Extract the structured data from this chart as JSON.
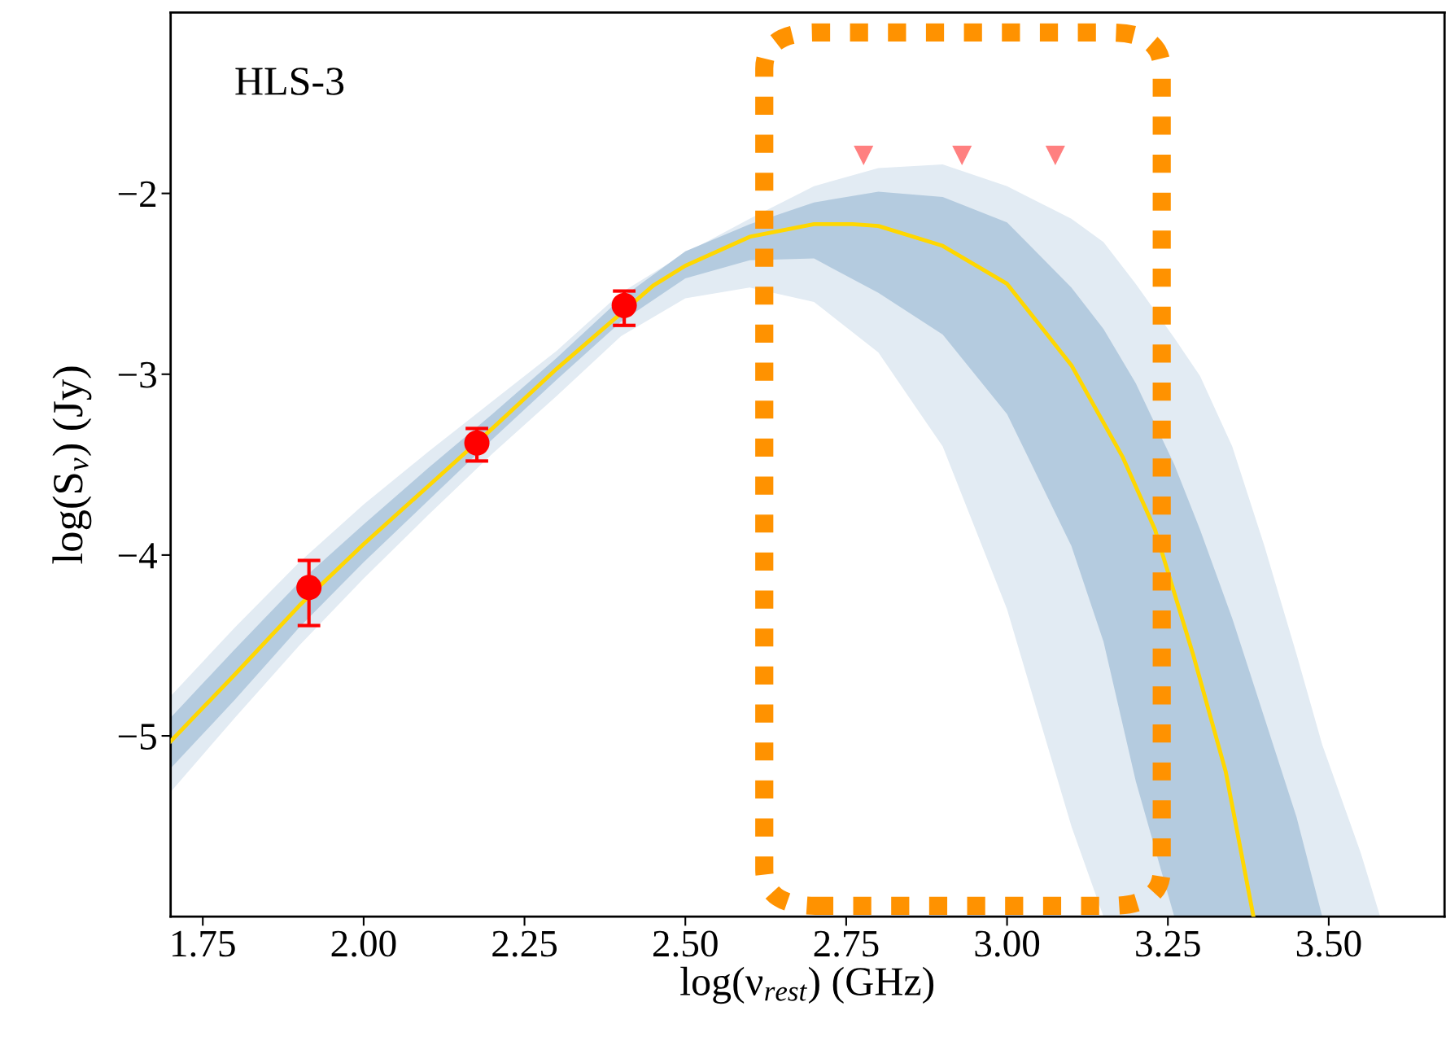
{
  "chart_data": {
    "type": "line",
    "xlabel": "log(ν$_{rest}$) (GHz)",
    "ylabel": "log(S$_{ν}$) (Jy)",
    "annotations": [
      "HLS-3"
    ],
    "xlim": [
      1.7,
      3.68
    ],
    "ylim": [
      -6.0,
      -1.0
    ],
    "xticks": [
      1.75,
      {
        "value": 2.0,
        "label": "2.00"
      },
      2.25,
      {
        "value": 2.5,
        "label": "2.50"
      },
      2.75,
      {
        "value": 3.0,
        "label": "3.00"
      },
      3.25,
      {
        "value": 3.5,
        "label": "3.50"
      }
    ],
    "yticks": [
      {
        "value": -5,
        "label": "−5"
      },
      {
        "value": -4,
        "label": "−4"
      },
      {
        "value": -3,
        "label": "−3"
      },
      {
        "value": -2,
        "label": "−2"
      }
    ],
    "grid": false,
    "series": [
      {
        "color": "#e2ebf3",
        "x": [
          1.7,
          1.8,
          1.9,
          2.0,
          2.1,
          2.2,
          2.3,
          2.4,
          2.5,
          2.6,
          2.7,
          2.8,
          2.9,
          3.0,
          3.1,
          3.15,
          3.2,
          3.26,
          3.3,
          3.35,
          3.4,
          3.45,
          3.49,
          3.55,
          3.58
        ],
        "values": [
          null,
          null,
          null,
          null,
          null,
          null,
          null,
          null,
          null,
          null,
          null,
          null,
          null,
          null,
          null,
          null,
          null,
          null,
          null,
          null,
          null,
          null,
          null,
          null,
          null
        ],
        "lower": [
          -5.31,
          -4.9,
          -4.5,
          -4.13,
          -3.78,
          -3.44,
          -3.12,
          -2.79,
          -2.58,
          -2.52,
          -2.6,
          -2.88,
          -3.4,
          -4.3,
          -5.5,
          -6.0,
          -6.0,
          -6.0,
          -6.0,
          -6.0,
          -6.0,
          -6.0,
          -6.0,
          -6.0,
          -6.0
        ],
        "upper": [
          -4.78,
          -4.4,
          -4.04,
          -3.72,
          -3.43,
          -3.15,
          -2.87,
          -2.55,
          -2.33,
          -2.14,
          -1.96,
          -1.86,
          -1.84,
          -1.96,
          -2.14,
          -2.27,
          -2.5,
          -2.8,
          -3.01,
          -3.4,
          -3.95,
          -4.55,
          -5.05,
          -5.65,
          -6.0
        ]
      },
      {
        "color": "#b4cbdf",
        "x": [
          1.7,
          1.8,
          1.9,
          2.0,
          2.1,
          2.2,
          2.3,
          2.4,
          2.5,
          2.6,
          2.7,
          2.8,
          2.9,
          3.0,
          3.1,
          3.15,
          3.2,
          3.26,
          3.3,
          3.35,
          3.4,
          3.45,
          3.49
        ],
        "values": [
          null,
          null,
          null,
          null,
          null,
          null,
          null,
          null,
          null,
          null,
          null,
          null,
          null,
          null,
          null,
          null,
          null,
          null,
          null,
          null,
          null,
          null,
          null
        ],
        "lower": [
          -5.18,
          -4.8,
          -4.4,
          -4.04,
          -3.7,
          -3.36,
          -3.03,
          -2.71,
          -2.47,
          -2.37,
          -2.36,
          -2.55,
          -2.78,
          -3.22,
          -3.95,
          -4.48,
          -5.25,
          -6.0,
          -6.0,
          -6.0,
          -6.0,
          -6.0,
          -6.0
        ],
        "upper": [
          -4.9,
          -4.52,
          -4.15,
          -3.83,
          -3.52,
          -3.22,
          -2.91,
          -2.58,
          -2.32,
          -2.17,
          -2.05,
          -1.99,
          -2.02,
          -2.16,
          -2.52,
          -2.75,
          -3.05,
          -3.5,
          -3.86,
          -4.35,
          -4.9,
          -5.45,
          -6.0
        ]
      },
      {
        "color": "#ffd700",
        "marker": "none",
        "line_style": "solid",
        "x": [
          1.7,
          1.8,
          1.9,
          2.0,
          2.1,
          2.2,
          2.3,
          2.45,
          2.5,
          2.6,
          2.7,
          2.76,
          2.8,
          2.9,
          3.0,
          3.1,
          3.18,
          3.23,
          3.29,
          3.34,
          3.383
        ],
        "values": [
          -5.03,
          -4.66,
          -4.28,
          -3.94,
          -3.62,
          -3.3,
          -2.97,
          -2.51,
          -2.4,
          -2.24,
          -2.17,
          -2.17,
          -2.18,
          -2.29,
          -2.5,
          -2.95,
          -3.46,
          -3.86,
          -4.56,
          -5.2,
          -6.0
        ]
      },
      {
        "type": "scatter",
        "color": "#ff0000",
        "marker": "circle",
        "x": [
          1.915,
          2.176,
          2.405
        ],
        "values": [
          -4.18,
          -3.38,
          -2.62
        ],
        "errors": [
          [
            -4.39,
            -4.03
          ],
          [
            -3.48,
            -3.3
          ],
          [
            -2.73,
            -2.54
          ]
        ]
      },
      {
        "type": "scatter",
        "color": "#ff8080",
        "marker": "triangle",
        "x": [
          2.777,
          2.93,
          3.075
        ],
        "values": [
          -1.79,
          -1.79,
          -1.79
        ]
      }
    ]
  }
}
